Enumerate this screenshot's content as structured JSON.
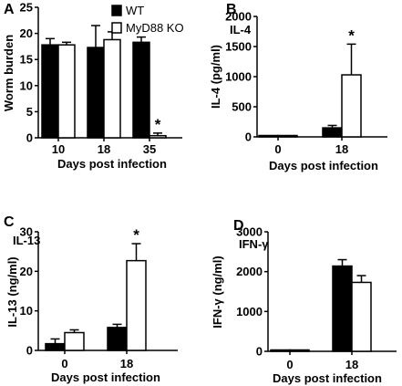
{
  "legend": [
    {
      "label": "WT",
      "fill": "#000000"
    },
    {
      "label": "MyD88 KO",
      "fill": "#ffffff"
    }
  ],
  "chart_data": [
    {
      "panel": "A",
      "type": "bar",
      "title": "",
      "ylabel": "Worm burden",
      "xlabel": "Days post infection",
      "categories": [
        "10",
        "18",
        "35"
      ],
      "ylim": [
        0,
        25
      ],
      "yticks": [
        0,
        5,
        10,
        15,
        20,
        25
      ],
      "series": [
        {
          "name": "WT",
          "values": [
            17.8,
            17.3,
            18.3
          ],
          "errors": [
            1.2,
            4.2,
            1.0
          ]
        },
        {
          "name": "MyD88 KO",
          "values": [
            17.8,
            18.8,
            0.4
          ],
          "errors": [
            0.5,
            1.5,
            0.5
          ]
        }
      ],
      "significance": [
        {
          "category": "35",
          "series": "MyD88 KO",
          "symbol": "*"
        }
      ]
    },
    {
      "panel": "B",
      "type": "bar",
      "title": "IL-4",
      "ylabel": "IL-4 (pg/ml)",
      "xlabel": "Days post infection",
      "categories": [
        "0",
        "18"
      ],
      "ylim": [
        0,
        2000
      ],
      "yticks": [
        0,
        500,
        1000,
        1500,
        2000
      ],
      "series": [
        {
          "name": "WT",
          "values": [
            12,
            150
          ],
          "errors": [
            5,
            40
          ]
        },
        {
          "name": "MyD88 KO",
          "values": [
            10,
            1030
          ],
          "errors": [
            4,
            510
          ]
        }
      ],
      "significance": [
        {
          "category": "18",
          "series": "MyD88 KO",
          "symbol": "*"
        }
      ]
    },
    {
      "panel": "C",
      "type": "bar",
      "title": "IL-13",
      "ylabel": "IL-13 (ng/ml)",
      "xlabel": "Days post infection",
      "categories": [
        "0",
        "18"
      ],
      "ylim": [
        0,
        30
      ],
      "yticks": [
        0,
        10,
        20,
        30
      ],
      "series": [
        {
          "name": "WT",
          "values": [
            1.7,
            5.8
          ],
          "errors": [
            1.2,
            0.8
          ]
        },
        {
          "name": "MyD88 KO",
          "values": [
            4.5,
            22.7
          ],
          "errors": [
            0.7,
            4.3
          ]
        }
      ],
      "significance": [
        {
          "category": "18",
          "series": "MyD88 KO",
          "symbol": "*"
        }
      ]
    },
    {
      "panel": "D",
      "type": "bar",
      "title": "IFN-γ",
      "ylabel": "IFN-γ (ng/ml)",
      "xlabel": "Days post infection",
      "categories": [
        "0",
        "18"
      ],
      "ylim": [
        0,
        3000
      ],
      "yticks": [
        0,
        1000,
        2000,
        3000
      ],
      "series": [
        {
          "name": "WT",
          "values": [
            8,
            2140
          ],
          "errors": [
            3,
            160
          ]
        },
        {
          "name": "MyD88 KO",
          "values": [
            8,
            1730
          ],
          "errors": [
            3,
            170
          ]
        }
      ],
      "significance": []
    }
  ]
}
